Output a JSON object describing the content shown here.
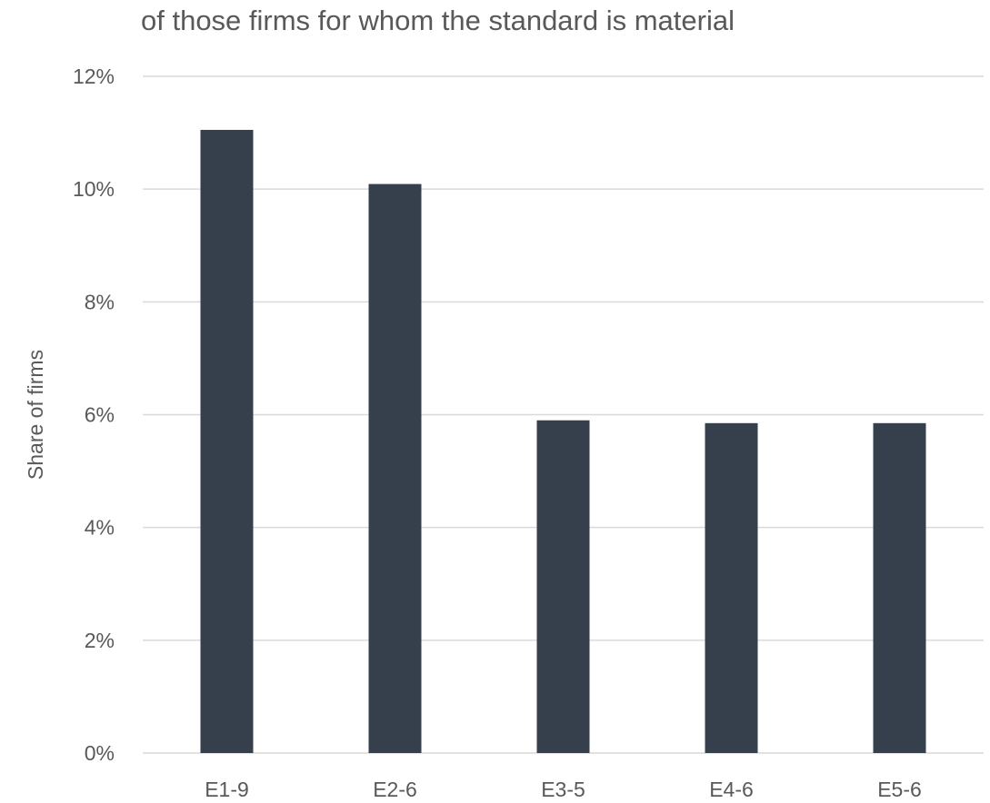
{
  "chart_data": {
    "type": "bar",
    "title": "of those firms for whom the standard is material",
    "xlabel": "",
    "ylabel": "Share of firms",
    "categories": [
      "E1-9",
      "E2-6",
      "E3-5",
      "E4-6",
      "E5-6"
    ],
    "values": [
      0.1105,
      0.1009,
      0.059,
      0.0585,
      0.0585
    ],
    "ylim": [
      0,
      0.12
    ],
    "yticks": [
      0,
      0.02,
      0.04,
      0.06,
      0.08,
      0.1,
      0.12
    ],
    "ytick_labels": [
      "0%",
      "2%",
      "4%",
      "6%",
      "8%",
      "10%",
      "12%"
    ],
    "grid": true,
    "legend": "none",
    "colors": {
      "bar": "#36404D",
      "grid": "#D9D9D9",
      "text": "#595959"
    }
  }
}
